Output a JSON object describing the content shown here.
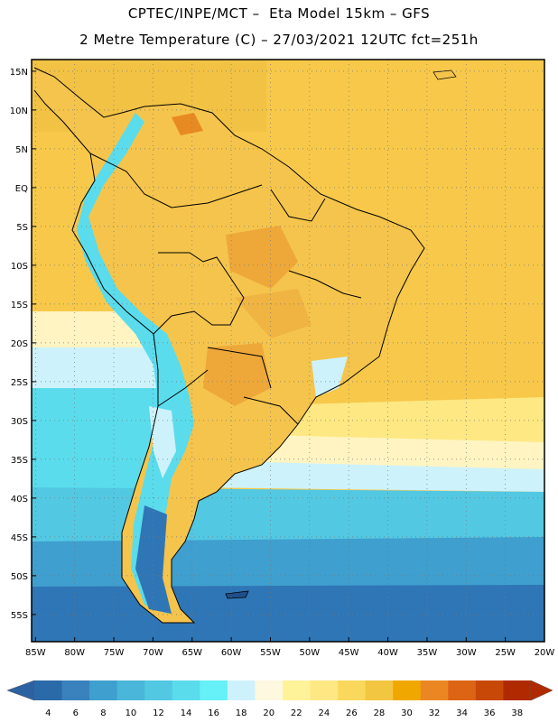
{
  "header": {
    "line1": "CPTEC/INPE/MCT –  Eta Model 15km – GFS",
    "line2": "2 Metre Temperature (C) – 27/03/2021 12UTC fct=251h"
  },
  "map": {
    "region": "South America",
    "lat_labels": [
      "15N",
      "10N",
      "5N",
      "EQ",
      "5S",
      "10S",
      "15S",
      "20S",
      "25S",
      "30S",
      "35S",
      "40S",
      "45S",
      "50S",
      "55S"
    ],
    "lon_labels": [
      "85W",
      "80W",
      "75W",
      "70W",
      "65W",
      "60W",
      "55W",
      "50W",
      "45W",
      "40W",
      "35W",
      "30W",
      "25W",
      "20W"
    ],
    "lat_range": [
      16.5,
      -58.5
    ],
    "lon_range": [
      -85.5,
      -20
    ]
  },
  "colorbar": {
    "values": [
      "4",
      "6",
      "8",
      "10",
      "12",
      "14",
      "16",
      "18",
      "20",
      "22",
      "24",
      "26",
      "28",
      "30",
      "32",
      "34",
      "36",
      "38"
    ],
    "colors": [
      "#2b6aa8",
      "#3a82bd",
      "#3f9fce",
      "#4ab6d9",
      "#53c8e3",
      "#5adcec",
      "#66f0f8",
      "#cdf2fb",
      "#fff8e0",
      "#fff39a",
      "#fde883",
      "#f9d85c",
      "#f2c640",
      "#f0a800",
      "#eb8722",
      "#dd6414",
      "#c84808",
      "#b02a00"
    ],
    "under_color": "#2d62a2",
    "over_color": "#b02a00"
  }
}
